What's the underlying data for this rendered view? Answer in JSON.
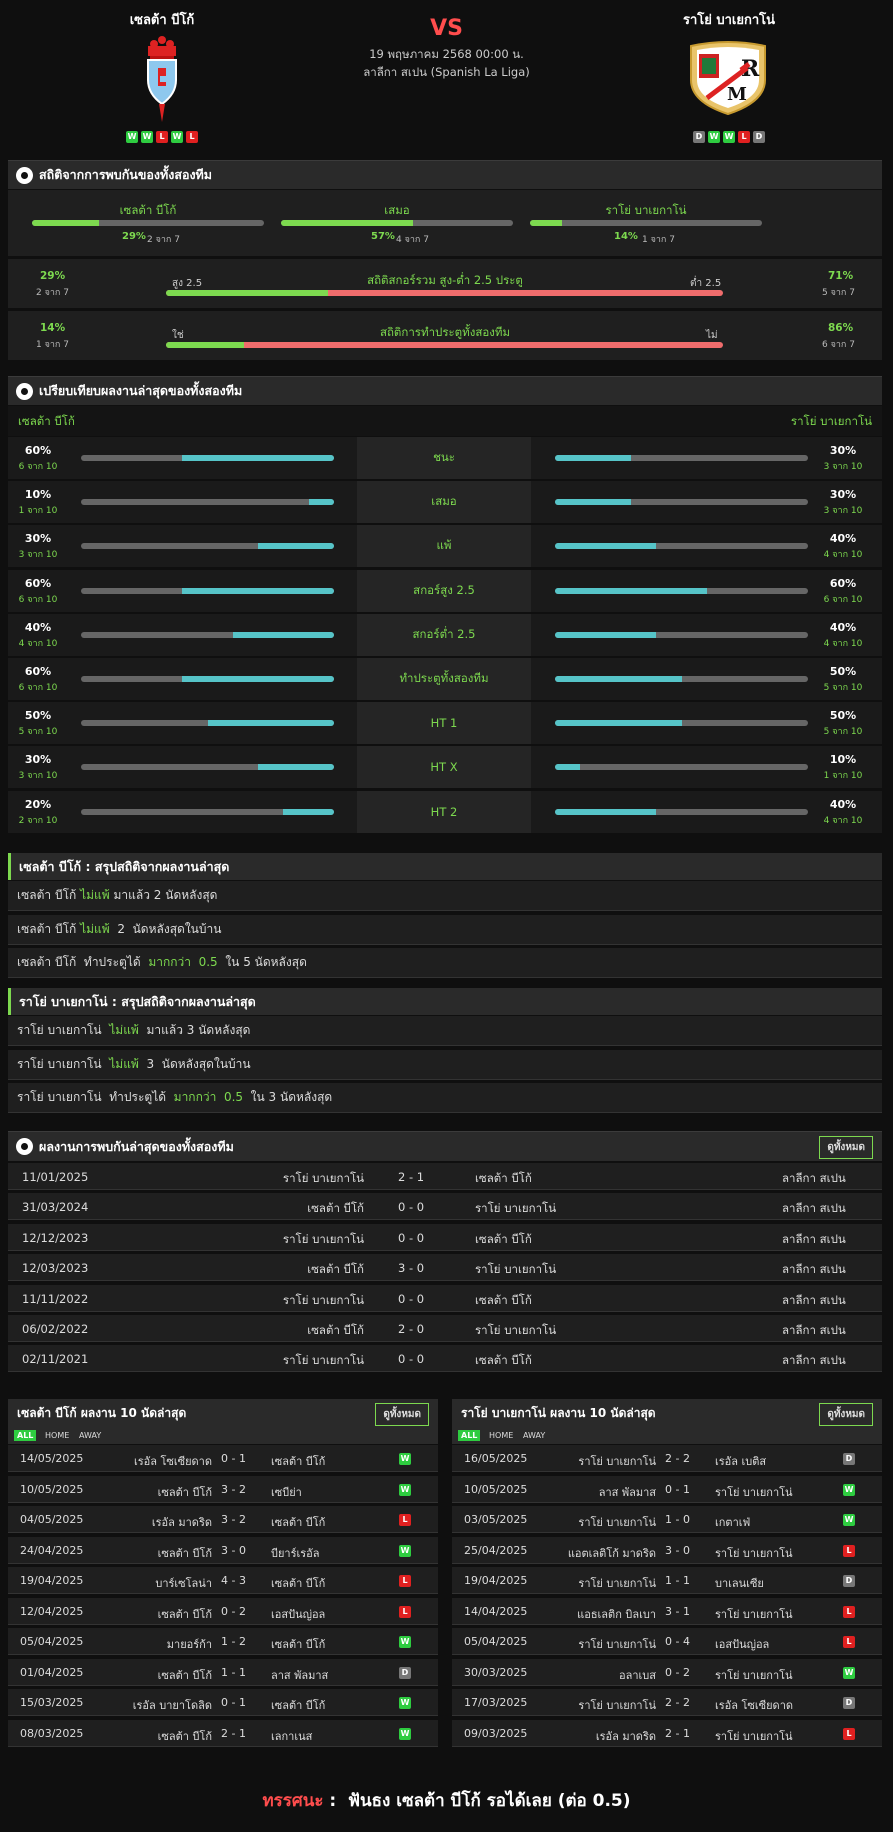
{
  "header": {
    "home_name": "เซลต้า บีโก้",
    "away_name": "ราโย่ บาเยกาโน่",
    "vs": "VS",
    "date": "19 พฤษภาคม 2568 00:00 น.",
    "league": "ลาลีกา สเปน (Spanish La Liga)",
    "home_form": [
      "W",
      "W",
      "L",
      "W",
      "L"
    ],
    "away_form": [
      "D",
      "W",
      "W",
      "L",
      "D"
    ]
  },
  "h2h_stats": {
    "title": "สถิติจากการพบกันของทั้งสองทีม",
    "cols": [
      {
        "label": "เซลต้า บีโก้",
        "pct": "29%",
        "count": "2 จาก 7",
        "value": 0.29
      },
      {
        "label": "เสมอ",
        "pct": "57%",
        "count": "4 จาก 7",
        "value": 0.57
      },
      {
        "label": "ราโย่ บาเยกาโน่",
        "pct": "14%",
        "count": "1 จาก 7",
        "value": 0.14
      }
    ],
    "over_under": {
      "title": "สถิติสกอร์รวม สูง-ต่ำ 2.5 ประตู",
      "left_label": "สูง 2.5",
      "right_label": "ต่ำ 2.5",
      "left_pct": "29%",
      "left_count": "2 จาก 7",
      "right_pct": "71%",
      "right_count": "5 จาก 7",
      "value": 0.29
    },
    "btts": {
      "title": "สถิติการทำประตูทั้งสองทีม",
      "left_label": "ใช่",
      "right_label": "ไม่",
      "left_pct": "14%",
      "left_count": "1 จาก 7",
      "right_pct": "86%",
      "right_count": "6 จาก 7",
      "value": 0.14
    }
  },
  "compare": {
    "title": "เปรียบเทียบผลงานล่าสุดของทั้งสองทีม",
    "home": "เซลต้า บีโก้",
    "away": "ราโย่ บาเยกาโน่",
    "rows": [
      {
        "label": "ชนะ",
        "hp": "60%",
        "hc": "6 จาก 10",
        "hv": 0.6,
        "ap": "30%",
        "ac": "3 จาก 10",
        "av": 0.3
      },
      {
        "label": "เสมอ",
        "hp": "10%",
        "hc": "1 จาก 10",
        "hv": 0.1,
        "ap": "30%",
        "ac": "3 จาก 10",
        "av": 0.3
      },
      {
        "label": "แพ้",
        "hp": "30%",
        "hc": "3 จาก 10",
        "hv": 0.3,
        "ap": "40%",
        "ac": "4 จาก 10",
        "av": 0.4
      },
      {
        "label": "สกอร์สูง 2.5",
        "hp": "60%",
        "hc": "6 จาก 10",
        "hv": 0.6,
        "ap": "60%",
        "ac": "6 จาก 10",
        "av": 0.6
      },
      {
        "label": "สกอร์ต่ำ 2.5",
        "hp": "40%",
        "hc": "4 จาก 10",
        "hv": 0.4,
        "ap": "40%",
        "ac": "4 จาก 10",
        "av": 0.4
      },
      {
        "label": "ทำประตูทั้งสองทีม",
        "hp": "60%",
        "hc": "6 จาก 10",
        "hv": 0.6,
        "ap": "50%",
        "ac": "5 จาก 10",
        "av": 0.5
      },
      {
        "label": "HT 1",
        "hp": "50%",
        "hc": "5 จาก 10",
        "hv": 0.5,
        "ap": "50%",
        "ac": "5 จาก 10",
        "av": 0.5
      },
      {
        "label": "HT X",
        "hp": "30%",
        "hc": "3 จาก 10",
        "hv": 0.3,
        "ap": "10%",
        "ac": "1 จาก 10",
        "av": 0.1
      },
      {
        "label": "HT 2",
        "hp": "20%",
        "hc": "2 จาก 10",
        "hv": 0.2,
        "ap": "40%",
        "ac": "4 จาก 10",
        "av": 0.4
      }
    ]
  },
  "home_summary": {
    "title": "เซลต้า บีโก้ : สรุปสถิติจากผลงานล่าสุด",
    "rows": [
      [
        {
          "t": "เซลต้า บีโก้ "
        },
        {
          "t": "ไม่แพ้",
          "g": true
        },
        {
          "t": " มาแล้ว 2 นัดหลังสุด"
        }
      ],
      [
        {
          "t": "เซลต้า บีโก้ "
        },
        {
          "t": "ไม่แพ้",
          "g": true
        },
        {
          "t": "  2  นัดหลังสุดในบ้าน"
        }
      ],
      [
        {
          "t": "เซลต้า บีโก้  ทำประตูได้  "
        },
        {
          "t": "มากกว่า  0.5",
          "g": true
        },
        {
          "t": "  ใน 5 นัดหลังสุด"
        }
      ]
    ]
  },
  "away_summary": {
    "title": "ราโย่ บาเยกาโน่ : สรุปสถิติจากผลงานล่าสุด",
    "rows": [
      [
        {
          "t": "ราโย่ บาเยกาโน่  "
        },
        {
          "t": "ไม่แพ้",
          "g": true
        },
        {
          "t": "  มาแล้ว 3 นัดหลังสุด"
        }
      ],
      [
        {
          "t": "ราโย่ บาเยกาโน่  "
        },
        {
          "t": "ไม่แพ้",
          "g": true
        },
        {
          "t": "  3  นัดหลังสุดในบ้าน"
        }
      ],
      [
        {
          "t": "ราโย่ บาเยกาโน่  ทำประตูได้  "
        },
        {
          "t": "มากกว่า  0.5",
          "g": true
        },
        {
          "t": "  ใน 3 นัดหลังสุด"
        }
      ]
    ]
  },
  "h2h_matches": {
    "title": "ผลงานการพบกันล่าสุดของทั้งสองทีม",
    "view_all": "ดูทั้งหมด",
    "rows": [
      {
        "date": "11/01/2025",
        "home": "ราโย่ บาเยกาโน่",
        "score": "2 - 1",
        "away": "เซลต้า บีโก้",
        "league": "ลาลีกา สเปน"
      },
      {
        "date": "31/03/2024",
        "home": "เซลต้า บีโก้",
        "score": "0 - 0",
        "away": "ราโย่ บาเยกาโน่",
        "league": "ลาลีกา สเปน"
      },
      {
        "date": "12/12/2023",
        "home": "ราโย่ บาเยกาโน่",
        "score": "0 - 0",
        "away": "เซลต้า บีโก้",
        "league": "ลาลีกา สเปน"
      },
      {
        "date": "12/03/2023",
        "home": "เซลต้า บีโก้",
        "score": "3 - 0",
        "away": "ราโย่ บาเยกาโน่",
        "league": "ลาลีกา สเปน"
      },
      {
        "date": "11/11/2022",
        "home": "ราโย่ บาเยกาโน่",
        "score": "0 - 0",
        "away": "เซลต้า บีโก้",
        "league": "ลาลีกา สเปน"
      },
      {
        "date": "06/02/2022",
        "home": "เซลต้า บีโก้",
        "score": "2 - 0",
        "away": "ราโย่ บาเยกาโน่",
        "league": "ลาลีกา สเปน"
      },
      {
        "date": "02/11/2021",
        "home": "ราโย่ บาเยกาโน่",
        "score": "0 - 0",
        "away": "เซลต้า บีโก้",
        "league": "ลาลีกา สเปน"
      }
    ]
  },
  "home_last10": {
    "title": "เซลต้า บีโก้ ผลงาน 10 นัดล่าสุด",
    "view_all": "ดูทั้งหมด",
    "tabs": [
      "ALL",
      "HOME",
      "AWAY"
    ],
    "rows": [
      {
        "date": "14/05/2025",
        "home": "เรอัล โซเซียดาด",
        "score": "0 - 1",
        "away": "เซลต้า บีโก้",
        "r": "W"
      },
      {
        "date": "10/05/2025",
        "home": "เซลต้า บีโก้",
        "score": "3 - 2",
        "away": "เซบีย่า",
        "r": "W"
      },
      {
        "date": "04/05/2025",
        "home": "เรอัล มาดริด",
        "score": "3 - 2",
        "away": "เซลต้า บีโก้",
        "r": "L"
      },
      {
        "date": "24/04/2025",
        "home": "เซลต้า บีโก้",
        "score": "3 - 0",
        "away": "บียาร์เรอัล",
        "r": "W"
      },
      {
        "date": "19/04/2025",
        "home": "บาร์เซโลน่า",
        "score": "4 - 3",
        "away": "เซลต้า บีโก้",
        "r": "L"
      },
      {
        "date": "12/04/2025",
        "home": "เซลต้า บีโก้",
        "score": "0 - 2",
        "away": "เอสปันญ่อล",
        "r": "L"
      },
      {
        "date": "05/04/2025",
        "home": "มายอร์ก้า",
        "score": "1 - 2",
        "away": "เซลต้า บีโก้",
        "r": "W"
      },
      {
        "date": "01/04/2025",
        "home": "เซลต้า บีโก้",
        "score": "1 - 1",
        "away": "ลาส พัลมาส",
        "r": "D"
      },
      {
        "date": "15/03/2025",
        "home": "เรอัล บายาโดลิด",
        "score": "0 - 1",
        "away": "เซลต้า บีโก้",
        "r": "W"
      },
      {
        "date": "08/03/2025",
        "home": "เซลต้า บีโก้",
        "score": "2 - 1",
        "away": "เลกาเนส",
        "r": "W"
      }
    ]
  },
  "away_last10": {
    "title": "ราโย่ บาเยกาโน่ ผลงาน 10 นัดล่าสุด",
    "view_all": "ดูทั้งหมด",
    "tabs": [
      "ALL",
      "HOME",
      "AWAY"
    ],
    "rows": [
      {
        "date": "16/05/2025",
        "home": "ราโย่ บาเยกาโน่",
        "score": "2 - 2",
        "away": "เรอัล เบติส",
        "r": "D"
      },
      {
        "date": "10/05/2025",
        "home": "ลาส พัลมาส",
        "score": "0 - 1",
        "away": "ราโย่ บาเยกาโน่",
        "r": "W"
      },
      {
        "date": "03/05/2025",
        "home": "ราโย่ บาเยกาโน่",
        "score": "1 - 0",
        "away": "เกตาเฟ่",
        "r": "W"
      },
      {
        "date": "25/04/2025",
        "home": "แอตเลติโก้ มาดริด",
        "score": "3 - 0",
        "away": "ราโย่ บาเยกาโน่",
        "r": "L"
      },
      {
        "date": "19/04/2025",
        "home": "ราโย่ บาเยกาโน่",
        "score": "1 - 1",
        "away": "บาเลนเซีย",
        "r": "D"
      },
      {
        "date": "14/04/2025",
        "home": "แอธเลติก บิลเบา",
        "score": "3 - 1",
        "away": "ราโย่ บาเยกาโน่",
        "r": "L"
      },
      {
        "date": "05/04/2025",
        "home": "ราโย่ บาเยกาโน่",
        "score": "0 - 4",
        "away": "เอสปันญ่อล",
        "r": "L"
      },
      {
        "date": "30/03/2025",
        "home": "อลาเบส",
        "score": "0 - 2",
        "away": "ราโย่ บาเยกาโน่",
        "r": "W"
      },
      {
        "date": "17/03/2025",
        "home": "ราโย่ บาเยกาโน่",
        "score": "2 - 2",
        "away": "เรอัล โซเซียดาด",
        "r": "D"
      },
      {
        "date": "09/03/2025",
        "home": "เรอัล มาดริด",
        "score": "2 - 1",
        "away": "ราโย่ บาเยกาโน่",
        "r": "L"
      }
    ]
  },
  "verdict": {
    "label": "ทรรศนะ",
    "sep": " :  ",
    "text": "ฟันธง เซลต้า บีโก้ รอได้เลย (ต่อ 0.5)"
  },
  "icons": {
    "section_icon": "soccer-ball-icon",
    "home_crest": "celta-crest-icon",
    "away_crest": "rayo-crest-icon"
  },
  "colors": {
    "accent": "#7dd94f",
    "cyan_bar": "#56c4c8",
    "red_bar": "#ef6c6c",
    "vs": "#ff4d4d",
    "win": "#2ecc40",
    "loss": "#e02020",
    "draw": "#777777"
  }
}
